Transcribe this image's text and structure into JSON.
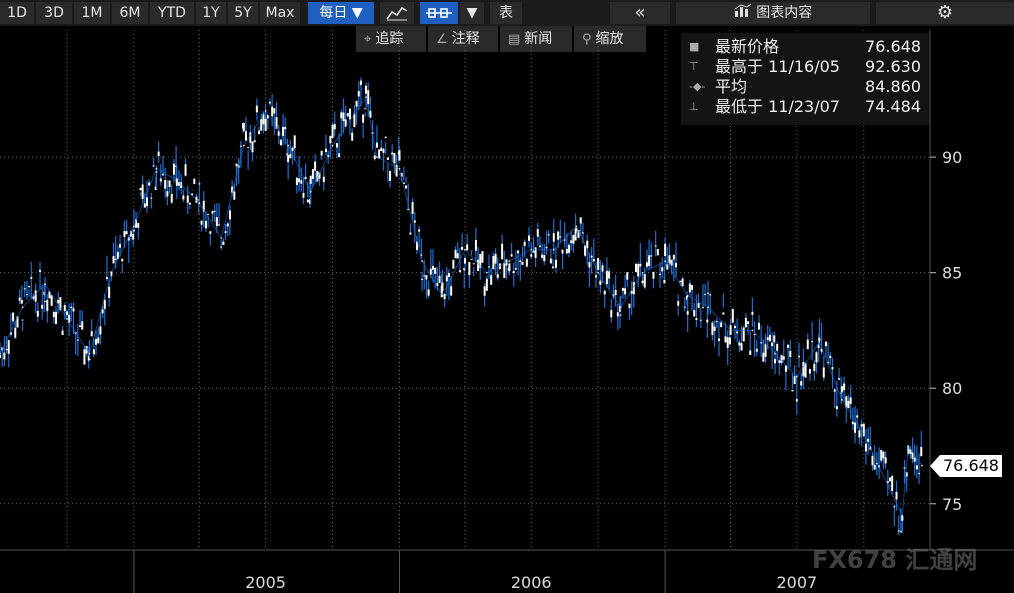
{
  "toolbar": {
    "ranges": [
      "1D",
      "3D",
      "1M",
      "6M",
      "YTD",
      "1Y",
      "5Y",
      "Max"
    ],
    "frequency": "每日 ▼",
    "table_label": "表",
    "collapse_glyph": "«",
    "chart_content_label": "图表内容",
    "icons": [
      "line-chart-icon",
      "candlestick-icon",
      "dropdown-icon",
      "bar-chart-icon",
      "gear-icon"
    ]
  },
  "subbar": {
    "items": [
      {
        "icon": "crosshair-icon",
        "glyph": "⌖",
        "label": "追踪"
      },
      {
        "icon": "annotate-icon",
        "glyph": "∠",
        "label": "注释"
      },
      {
        "icon": "news-icon",
        "glyph": "▤",
        "label": "新闻"
      },
      {
        "icon": "zoom-icon",
        "glyph": "⚲",
        "label": "缩放"
      }
    ]
  },
  "legend": {
    "rows": [
      {
        "marker": "■",
        "label": "最新价格",
        "value": "76.648"
      },
      {
        "marker": "⊤",
        "label": "最高于 11/16/05",
        "value": "92.630"
      },
      {
        "marker": "-◆-",
        "label": "平均",
        "value": "84.860"
      },
      {
        "marker": "⊥",
        "label": "最低于 11/23/07",
        "value": "74.484"
      }
    ]
  },
  "last_price_badge": "76.648",
  "watermark": "FX678 汇通网",
  "colors": {
    "background": "#000000",
    "candle_body": "#ffffff",
    "wick": "#1e6fd6",
    "toolbar": "#1b1b1b",
    "highlight": "#1f5fbf"
  },
  "chart_data": {
    "type": "line",
    "title": "",
    "xlabel": "",
    "ylabel": "",
    "x_tick_labels": [
      "2005",
      "2006",
      "2007"
    ],
    "y_ticks": [
      75,
      80,
      85,
      90
    ],
    "ylim": [
      73,
      95.5
    ],
    "xlim": [
      "2004-07-01",
      "2007-12-31"
    ],
    "grid": true,
    "series": [
      {
        "name": "",
        "x": [
          "2004-07-01",
          "2004-08-01",
          "2004-09-01",
          "2004-10-01",
          "2004-11-01",
          "2004-12-01",
          "2005-01-01",
          "2005-02-01",
          "2005-03-01",
          "2005-04-01",
          "2005-05-01",
          "2005-06-01",
          "2005-07-01",
          "2005-08-01",
          "2005-09-01",
          "2005-10-01",
          "2005-11-16",
          "2005-12-01",
          "2006-01-01",
          "2006-02-01",
          "2006-03-01",
          "2006-04-01",
          "2006-05-01",
          "2006-06-01",
          "2006-07-01",
          "2006-08-01",
          "2006-09-01",
          "2006-10-01",
          "2006-11-01",
          "2006-12-01",
          "2007-01-01",
          "2007-02-01",
          "2007-03-01",
          "2007-04-01",
          "2007-05-01",
          "2007-06-01",
          "2007-07-01",
          "2007-08-01",
          "2007-09-01",
          "2007-10-01",
          "2007-11-23",
          "2007-12-01",
          "2007-12-20"
        ],
        "y": [
          81.5,
          83.5,
          84.5,
          83,
          81.5,
          85,
          87,
          89.5,
          89,
          88,
          86.5,
          90.5,
          92,
          90.5,
          88.5,
          90.5,
          92.6,
          90,
          89.5,
          85.5,
          84,
          86,
          85,
          85.5,
          86,
          86,
          87,
          85,
          83.5,
          85,
          85.5,
          84,
          83.5,
          82.5,
          82.5,
          81.5,
          80.5,
          82,
          79.5,
          78,
          74.48,
          77.5,
          76.65
        ]
      }
    ]
  }
}
